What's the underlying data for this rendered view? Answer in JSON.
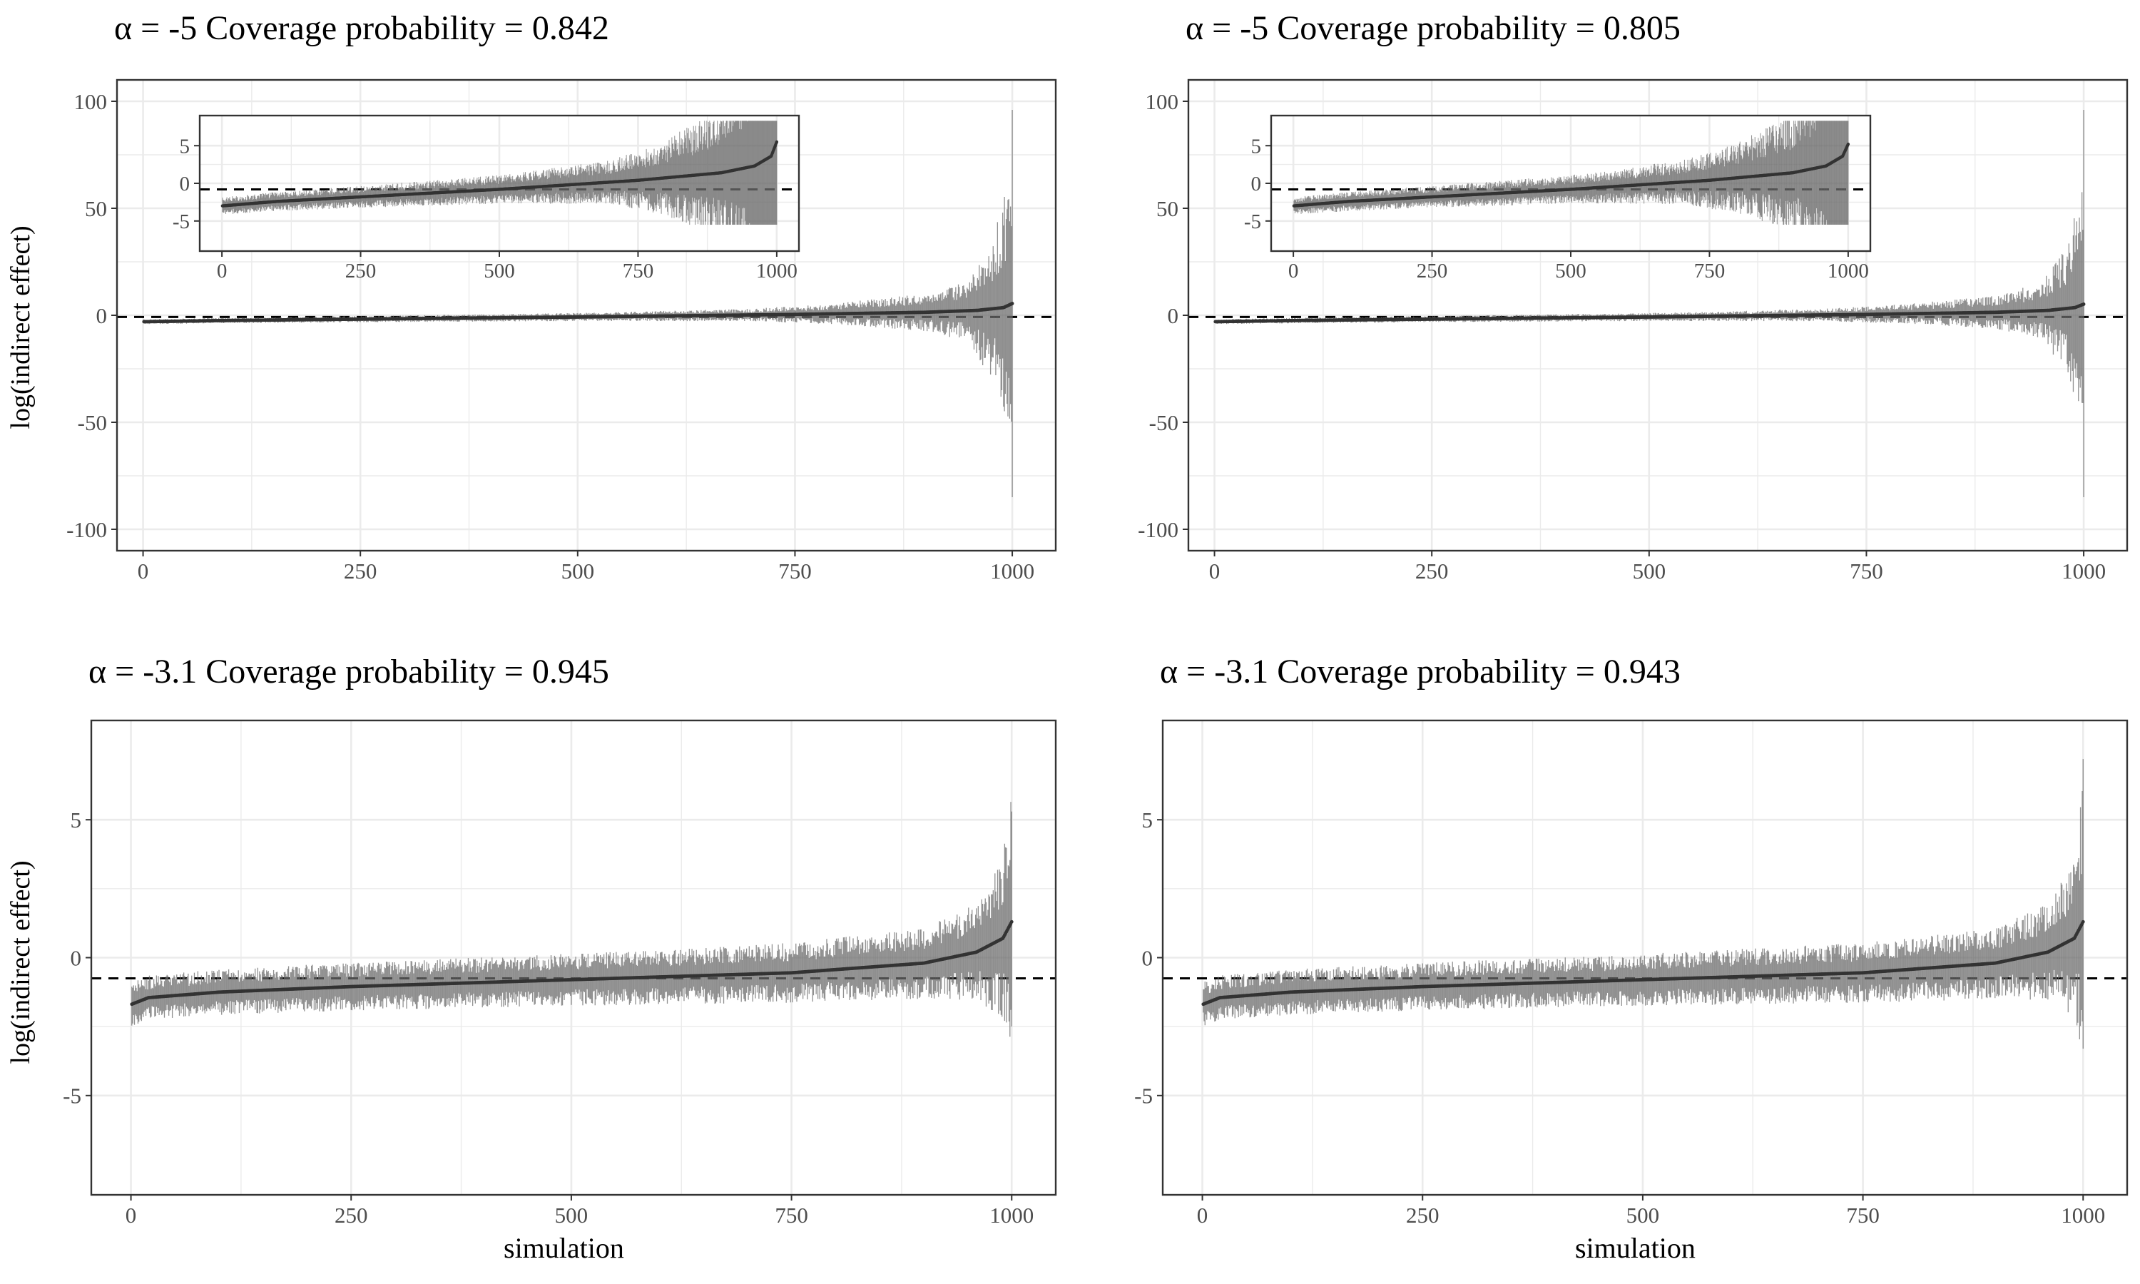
{
  "figure": {
    "y_axis_label": "log(indirect effect)",
    "x_axis_label": "simulation"
  },
  "colors": {
    "interval": "#6b6b6b",
    "point": "#333333",
    "reference_line": "#000000",
    "grid": "#ebebeb",
    "panel_border": "#333333"
  },
  "panels": [
    {
      "title": "α = -5  Coverage probability = 0.842"
    },
    {
      "title": "α = -5  Coverage probability = 0.805"
    },
    {
      "title": "α = -3.1  Coverage probability = 0.945"
    },
    {
      "title": "α = -3.1  Coverage probability = 0.943"
    }
  ],
  "chart_data": [
    {
      "type": "scatter",
      "title": "α = -5  Coverage probability = 0.842",
      "xlabel": "",
      "ylabel": "log(indirect effect)",
      "xlim": [
        -30,
        1050
      ],
      "ylim": [
        -110,
        110
      ],
      "x_ticks": [
        0,
        250,
        500,
        750,
        1000
      ],
      "x_tick_labels": [
        "0",
        "250",
        "500",
        "750",
        "1000"
      ],
      "y_ticks": [
        -100,
        -50,
        0,
        50,
        100
      ],
      "y_tick_labels": [
        "-100",
        "-50",
        "0",
        "50",
        "100"
      ],
      "reference_line": -0.8,
      "n_simulations": 1000,
      "coverage_probability": 0.842,
      "estimate_curve": {
        "x": [
          0,
          100,
          250,
          500,
          750,
          900,
          960,
          990,
          1000
        ],
        "y": [
          -3,
          -2.4,
          -1.8,
          -0.8,
          0.4,
          1.4,
          2.3,
          3.6,
          5.5
        ]
      },
      "interval_halfwidth": {
        "x": [
          0,
          250,
          500,
          700,
          800,
          900,
          950,
          980,
          1000
        ],
        "y": [
          0.8,
          1.0,
          1.3,
          2,
          3.5,
          6,
          10,
          25,
          45
        ]
      },
      "extremes": {
        "max_upper": 96,
        "min_lower": -85
      },
      "inset": {
        "xlim": [
          -40,
          1040
        ],
        "ylim": [
          -9,
          9
        ],
        "x_ticks": [
          0,
          250,
          500,
          750,
          1000
        ],
        "x_tick_labels": [
          "0",
          "250",
          "500",
          "750",
          "1000"
        ],
        "y_ticks": [
          -5,
          0,
          5
        ],
        "y_tick_labels": [
          "-5",
          "0",
          "5"
        ],
        "display_clip": [
          -5.5,
          8.3
        ]
      }
    },
    {
      "type": "scatter",
      "title": "α = -5  Coverage probability = 0.805",
      "xlabel": "",
      "ylabel": "",
      "xlim": [
        -30,
        1050
      ],
      "ylim": [
        -110,
        110
      ],
      "x_ticks": [
        0,
        250,
        500,
        750,
        1000
      ],
      "x_tick_labels": [
        "0",
        "250",
        "500",
        "750",
        "1000"
      ],
      "y_ticks": [
        -100,
        -50,
        0,
        50,
        100
      ],
      "y_tick_labels": [
        "-100",
        "-50",
        "0",
        "50",
        "100"
      ],
      "reference_line": -0.8,
      "n_simulations": 1000,
      "coverage_probability": 0.805,
      "estimate_curve": {
        "x": [
          0,
          100,
          250,
          500,
          750,
          900,
          960,
          990,
          1000
        ],
        "y": [
          -3,
          -2.4,
          -1.8,
          -0.8,
          0.4,
          1.4,
          2.3,
          3.6,
          5.2
        ]
      },
      "interval_halfwidth": {
        "x": [
          0,
          250,
          500,
          700,
          800,
          900,
          950,
          980,
          1000
        ],
        "y": [
          0.8,
          1.0,
          1.3,
          2,
          3.2,
          5.5,
          9,
          20,
          40
        ]
      },
      "extremes": {
        "max_upper": 96,
        "min_lower": -85
      },
      "inset": {
        "xlim": [
          -40,
          1040
        ],
        "ylim": [
          -9,
          9
        ],
        "x_ticks": [
          0,
          250,
          500,
          750,
          1000
        ],
        "x_tick_labels": [
          "0",
          "250",
          "500",
          "750",
          "1000"
        ],
        "y_ticks": [
          -5,
          0,
          5
        ],
        "y_tick_labels": [
          "-5",
          "0",
          "5"
        ],
        "display_clip": [
          -5.5,
          8.3
        ]
      }
    },
    {
      "type": "scatter",
      "title": "α = -3.1  Coverage probability = 0.945",
      "xlabel": "simulation",
      "ylabel": "log(indirect effect)",
      "xlim": [
        -45,
        1050
      ],
      "ylim": [
        -8.6,
        8.6
      ],
      "x_ticks": [
        0,
        250,
        500,
        750,
        1000
      ],
      "x_tick_labels": [
        "0",
        "250",
        "500",
        "750",
        "1000"
      ],
      "y_ticks": [
        -5,
        0,
        5
      ],
      "y_tick_labels": [
        "-5",
        "0",
        "5"
      ],
      "reference_line": -0.75,
      "n_simulations": 1000,
      "coverage_probability": 0.945,
      "estimate_curve": {
        "x": [
          0,
          20,
          100,
          250,
          500,
          750,
          900,
          960,
          990,
          1000
        ],
        "y": [
          -1.7,
          -1.45,
          -1.25,
          -1.05,
          -0.8,
          -0.55,
          -0.2,
          0.2,
          0.7,
          1.3
        ]
      },
      "interval_halfwidth": {
        "x": [
          0,
          250,
          500,
          750,
          900,
          960,
          990,
          1000
        ],
        "y": [
          0.55,
          0.6,
          0.65,
          0.75,
          0.9,
          1.2,
          2.0,
          3.5
        ]
      },
      "extremes": {
        "max_upper": 5.3,
        "min_lower": -2.5
      }
    },
    {
      "type": "scatter",
      "title": "α = -3.1  Coverage probability = 0.943",
      "xlabel": "simulation",
      "ylabel": "",
      "xlim": [
        -45,
        1050
      ],
      "ylim": [
        -8.6,
        8.6
      ],
      "x_ticks": [
        0,
        250,
        500,
        750,
        1000
      ],
      "x_tick_labels": [
        "0",
        "250",
        "500",
        "750",
        "1000"
      ],
      "y_ticks": [
        -5,
        0,
        5
      ],
      "y_tick_labels": [
        "-5",
        "0",
        "5"
      ],
      "reference_line": -0.75,
      "n_simulations": 1000,
      "coverage_probability": 0.943,
      "estimate_curve": {
        "x": [
          0,
          20,
          100,
          250,
          500,
          750,
          900,
          960,
          990,
          1000
        ],
        "y": [
          -1.7,
          -1.45,
          -1.25,
          -1.05,
          -0.8,
          -0.55,
          -0.2,
          0.2,
          0.7,
          1.3
        ]
      },
      "interval_halfwidth": {
        "x": [
          0,
          250,
          500,
          750,
          900,
          960,
          990,
          1000
        ],
        "y": [
          0.55,
          0.6,
          0.65,
          0.75,
          0.9,
          1.2,
          2.0,
          3.5
        ]
      },
      "extremes": {
        "max_upper": 7.2,
        "min_lower": -3.3
      }
    }
  ]
}
